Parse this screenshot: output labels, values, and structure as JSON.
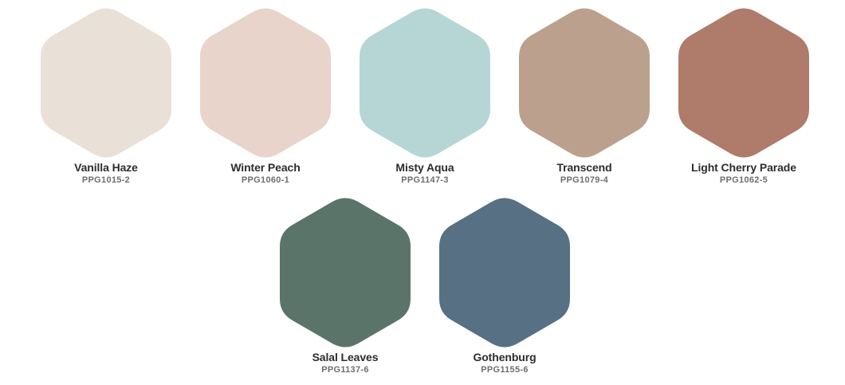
{
  "swatches": [
    {
      "name": "Vanilla Haze",
      "code": "PPG1015-2",
      "color": "#e9e0d8"
    },
    {
      "name": "Winter Peach",
      "code": "PPG1060-1",
      "color": "#e8d4ca"
    },
    {
      "name": "Misty Aqua",
      "code": "PPG1147-3",
      "color": "#b6d6d6"
    },
    {
      "name": "Transcend",
      "code": "PPG1079-4",
      "color": "#bba18d"
    },
    {
      "name": "Light Cherry Parade",
      "code": "PPG1062-5",
      "color": "#af7b6a"
    },
    {
      "name": "Salal Leaves",
      "code": "PPG1137-6",
      "color": "#5a7469"
    },
    {
      "name": "Gothenburg",
      "code": "PPG1155-6",
      "color": "#587083"
    }
  ]
}
